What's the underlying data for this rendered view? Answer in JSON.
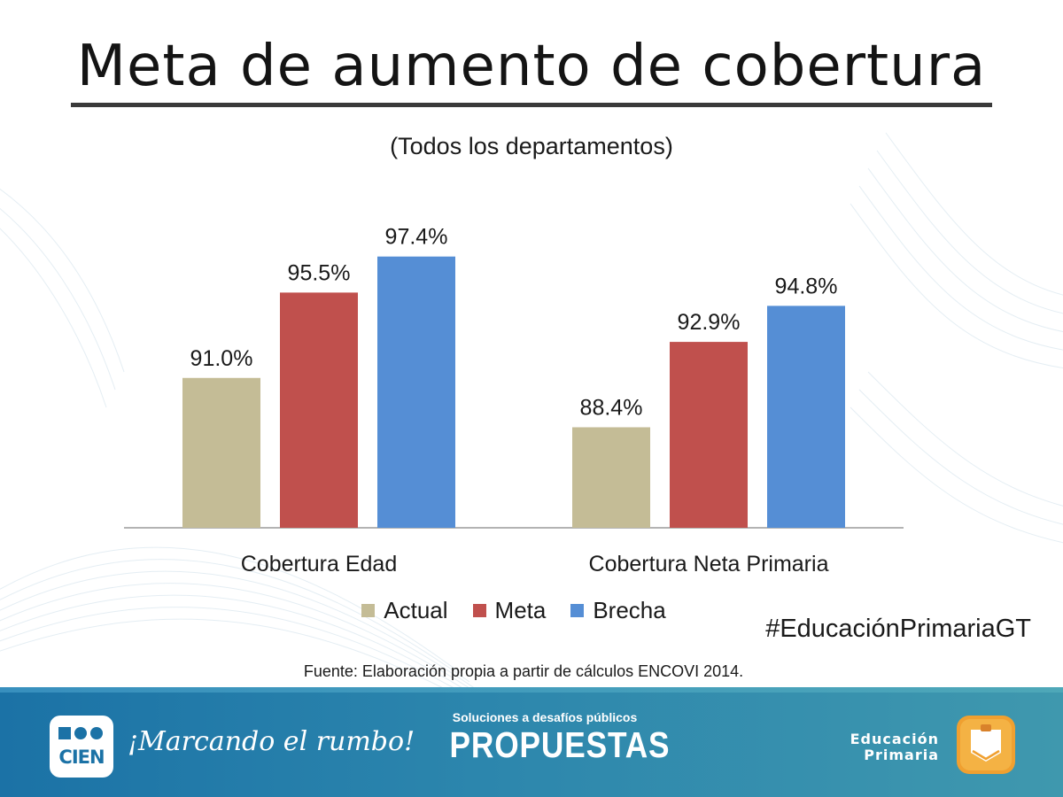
{
  "title": "Meta de aumento de cobertura",
  "subtitle": "(Todos los departamentos)",
  "chart_data": {
    "type": "bar",
    "categories": [
      "Cobertura Edad",
      "Cobertura Neta Primaria"
    ],
    "series": [
      {
        "name": "Actual",
        "values": [
          91.0,
          88.4
        ],
        "labels": [
          "91.0%",
          "88.4%"
        ],
        "color": "#c4bc96"
      },
      {
        "name": "Meta",
        "values": [
          95.5,
          92.9
        ],
        "labels": [
          "95.5%",
          "92.9%"
        ],
        "color": "#c0504d"
      },
      {
        "name": "Brecha",
        "values": [
          97.4,
          94.8
        ],
        "labels": [
          "97.4%",
          "94.8%"
        ],
        "color": "#558ed5"
      }
    ],
    "legend_position": "bottom",
    "grid": false
  },
  "legend": [
    {
      "label": "Actual",
      "color": "#c4bc96"
    },
    {
      "label": "Meta",
      "color": "#c0504d"
    },
    {
      "label": "Brecha",
      "color": "#558ed5"
    }
  ],
  "hashtag": "#EducaciónPrimariaGT",
  "source": "Fuente: Elaboración propia a partir de cálculos ENCOVI 2014.",
  "footer": {
    "cien_logo": "CIEN",
    "slogan": "¡Marcando el rumbo!",
    "center_tagline": "Soluciones a desafíos públicos",
    "center_word": "PROPUESTAS",
    "edu_line1": "Educación",
    "edu_line2": "Primaria",
    "colors": {
      "footer": "#1b72a6",
      "edu_icon": "#f0a030"
    }
  }
}
